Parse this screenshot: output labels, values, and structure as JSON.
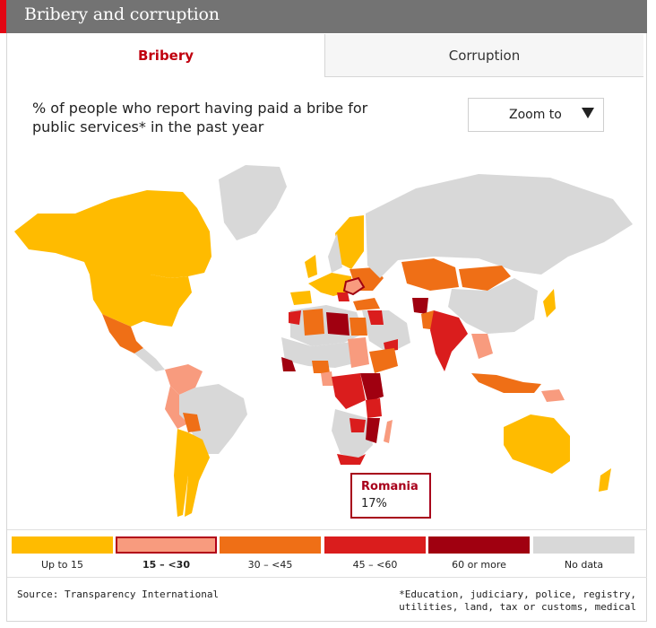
{
  "header": {
    "title": "Bribery and corruption"
  },
  "tabs": [
    {
      "label": "Bribery",
      "active": true
    },
    {
      "label": "Corruption",
      "active": false
    }
  ],
  "map": {
    "subtitle": "% of people who report having paid a bribe for public services* in the past year",
    "zoom_label": "Zoom to",
    "tooltip": {
      "country": "Romania",
      "value": "17%"
    }
  },
  "colors": {
    "up_to_15": "#ffbb00",
    "15_30": "#f89b7e",
    "30_45": "#ef6f16",
    "45_60": "#da1d1d",
    "60_plus": "#a00010",
    "no_data": "#d8d8d8",
    "accent": "#e30613"
  },
  "legend": [
    {
      "label": "Up to 15",
      "color": "#ffbb00",
      "selected": false
    },
    {
      "label": "15 – <30",
      "color": "#f89b7e",
      "selected": true
    },
    {
      "label": "30 – <45",
      "color": "#ef6f16",
      "selected": false
    },
    {
      "label": "45 – <60",
      "color": "#da1d1d",
      "selected": false
    },
    {
      "label": "60 or more",
      "color": "#a00010",
      "selected": false
    },
    {
      "label": "No data",
      "color": "#d8d8d8",
      "selected": false
    }
  ],
  "footer": {
    "source": "Source: Transparency International",
    "note_line1": "*Education, judiciary, police, registry,",
    "note_line2": "utilities, land, tax or customs, medical"
  }
}
